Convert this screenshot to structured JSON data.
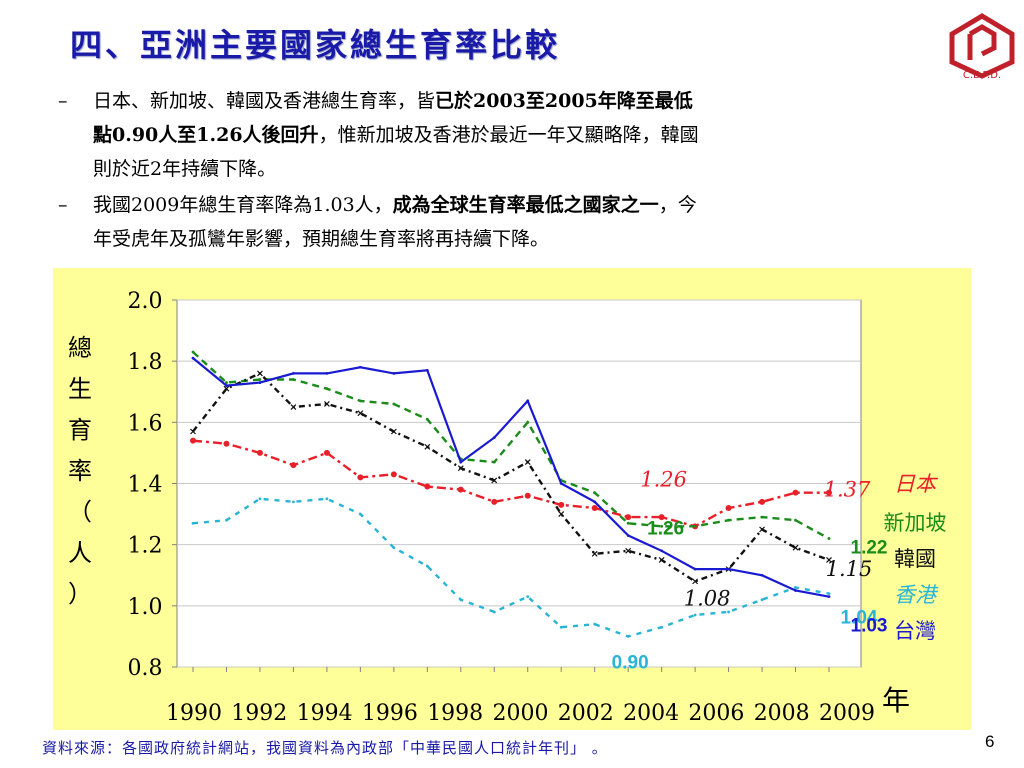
{
  "slide": {
    "title": "四、亞洲主要國家總生育率比較",
    "logo_text": "C.E.P.D.",
    "bullets": [
      {
        "dash": "–",
        "line1_pre": "日本、新加坡、韓國及香港總生育率，皆",
        "line1_bold": "已於2003至2005年降至最低",
        "line2_bold": "點0.90人至1.26人後回升",
        "line2_post": "，惟新加坡及香港於最近一年又顯略降，韓國",
        "line3": "則於近2年持續下降。"
      },
      {
        "dash": "–",
        "line1_pre": "我國2009年總生育率降為1.03人，",
        "line1_bold": "成為全球生育率最低之國家之一",
        "line1_post": "，今",
        "line2": "年受虎年及孤鸞年影響，預期總生育率將再持續下降。"
      }
    ],
    "footer": "資料來源：各國政府統計網站，我國資料為內政部「中華民國人口統計年刊」 。",
    "page_number": "6"
  },
  "chart_data": {
    "type": "line",
    "ylabel": "總生育率（人）",
    "xlabel_unit": "年",
    "ylim": [
      0.8,
      2.0
    ],
    "yticks": [
      "2.0",
      "1.8",
      "1.6",
      "1.4",
      "1.2",
      "1.0",
      "0.8"
    ],
    "xtick_labels": [
      "1990",
      "1992",
      "1994",
      "1996",
      "1998",
      "2000",
      "2002",
      "2004",
      "2006",
      "2008",
      "2009"
    ],
    "x": [
      1990,
      1991,
      1992,
      1993,
      1994,
      1995,
      1996,
      1997,
      1998,
      1999,
      2000,
      2001,
      2002,
      2003,
      2004,
      2005,
      2006,
      2007,
      2008,
      2009
    ],
    "grid": true,
    "series": [
      {
        "name": "日本",
        "color": "#e8202a",
        "style": "dashdot-circle",
        "values": [
          1.54,
          1.53,
          1.5,
          1.46,
          1.5,
          1.42,
          1.43,
          1.39,
          1.38,
          1.34,
          1.36,
          1.33,
          1.32,
          1.29,
          1.29,
          1.26,
          1.32,
          1.34,
          1.37,
          1.37
        ]
      },
      {
        "name": "新加坡",
        "color": "#1a8c1a",
        "style": "dashed",
        "values": [
          1.83,
          1.73,
          1.74,
          1.74,
          1.71,
          1.67,
          1.66,
          1.61,
          1.48,
          1.47,
          1.6,
          1.41,
          1.37,
          1.27,
          1.26,
          1.26,
          1.28,
          1.29,
          1.28,
          1.22
        ]
      },
      {
        "name": "韓國",
        "color": "#111111",
        "style": "dashdot-x",
        "values": [
          1.57,
          1.71,
          1.76,
          1.65,
          1.66,
          1.63,
          1.57,
          1.52,
          1.45,
          1.41,
          1.47,
          1.3,
          1.17,
          1.18,
          1.15,
          1.08,
          1.12,
          1.25,
          1.19,
          1.15
        ]
      },
      {
        "name": "香港",
        "color": "#28b4d6",
        "style": "dotted",
        "values": [
          1.27,
          1.28,
          1.35,
          1.34,
          1.35,
          1.3,
          1.19,
          1.13,
          1.02,
          0.98,
          1.03,
          0.93,
          0.94,
          0.9,
          0.93,
          0.97,
          0.98,
          1.02,
          1.06,
          1.04
        ]
      },
      {
        "name": "台灣",
        "color": "#1a1ad0",
        "style": "solid",
        "values": [
          1.81,
          1.72,
          1.73,
          1.76,
          1.76,
          1.78,
          1.76,
          1.77,
          1.47,
          1.55,
          1.67,
          1.4,
          1.34,
          1.23,
          1.18,
          1.12,
          1.12,
          1.1,
          1.05,
          1.03
        ]
      }
    ],
    "annotations": [
      {
        "text": "1.26",
        "x": 2004,
        "y": 1.26,
        "color": "#e8202a",
        "style": "italic"
      },
      {
        "text": "1.37",
        "x": 2009,
        "y": 1.37,
        "color": "#e8202a",
        "style": "italic"
      },
      {
        "text": "1.26",
        "x": 2004,
        "y": 1.26,
        "color": "#1a8c1a",
        "style": "bold"
      },
      {
        "text": "1.22",
        "x": 2009,
        "y": 1.22,
        "color": "#1a8c1a",
        "style": "bold"
      },
      {
        "text": "1.15",
        "x": 2009,
        "y": 1.15,
        "color": "#111111",
        "style": "italic"
      },
      {
        "text": "1.08",
        "x": 2005,
        "y": 1.08,
        "color": "#111111",
        "style": "italic"
      },
      {
        "text": "1.04",
        "x": 2009,
        "y": 1.04,
        "color": "#28b4d6",
        "style": "bold"
      },
      {
        "text": "0.90",
        "x": 2003,
        "y": 0.9,
        "color": "#28b4d6",
        "style": "bold"
      },
      {
        "text": "1.03",
        "x": 2009,
        "y": 1.03,
        "color": "#1a1ad0",
        "style": "bold"
      }
    ],
    "legend": [
      {
        "text": "日本",
        "color": "#e8202a"
      },
      {
        "text": "新加坡",
        "color": "#1a8c1a"
      },
      {
        "text": "韓國",
        "color": "#111111"
      },
      {
        "text": "香港",
        "color": "#28b4d6"
      },
      {
        "text": "台灣",
        "color": "#1a1ad0"
      }
    ]
  }
}
